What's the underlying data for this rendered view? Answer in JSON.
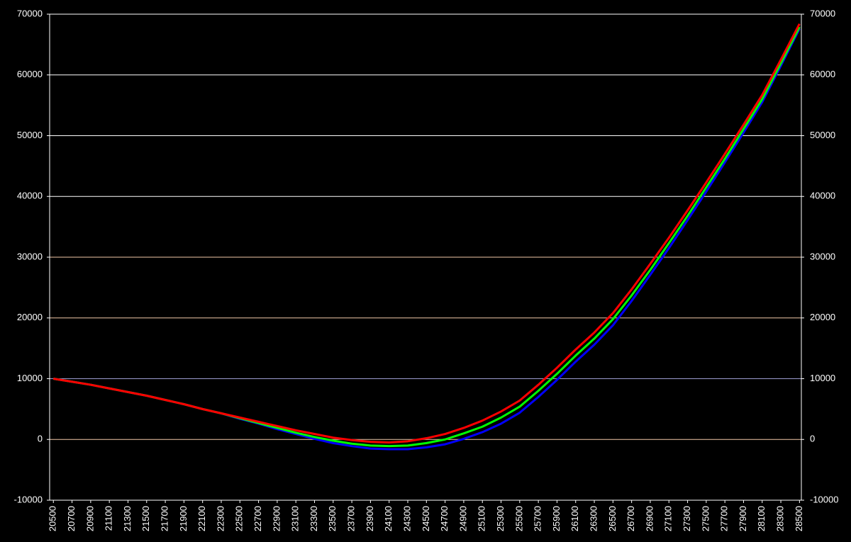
{
  "chart_data": {
    "type": "line",
    "x": [
      20500,
      20700,
      20900,
      21100,
      21300,
      21500,
      21700,
      21900,
      22100,
      22300,
      22500,
      22700,
      22900,
      23100,
      23300,
      23500,
      23700,
      23900,
      24100,
      24300,
      24500,
      24700,
      24900,
      25100,
      25300,
      25500,
      25700,
      25900,
      26100,
      26300,
      26500,
      26700,
      26900,
      27100,
      27300,
      27500,
      27700,
      27900,
      28100,
      28300,
      28500
    ],
    "xlim": [
      20460,
      28520
    ],
    "xticks": [
      20500,
      20700,
      20900,
      21100,
      21300,
      21500,
      21700,
      21900,
      22100,
      22300,
      22500,
      22700,
      22900,
      23100,
      23300,
      23500,
      23700,
      23900,
      24100,
      24300,
      24500,
      24700,
      24900,
      25100,
      25300,
      25500,
      25700,
      25900,
      26100,
      26300,
      26500,
      26700,
      26900,
      27100,
      27300,
      27500,
      27700,
      27900,
      28100,
      28300,
      28500
    ],
    "ylim": [
      -10000,
      70000
    ],
    "yticks": [
      -10000,
      0,
      10000,
      20000,
      30000,
      40000,
      50000,
      60000,
      70000
    ],
    "y2lim": [
      -10000,
      70000
    ],
    "y2ticks": [
      -10000,
      0,
      10000,
      20000,
      30000,
      40000,
      50000,
      60000,
      70000
    ],
    "grid": true,
    "grid_colors": [
      "#ffffff",
      "#f2c8a8",
      "#9c9cd0",
      "#f2c8a8",
      "#f2c8a8",
      "#ffffff",
      "#ffffff",
      "#ffffff",
      "#ffffff"
    ],
    "series": [
      {
        "color": "#0000ff",
        "values": [
          10000,
          9500,
          9000,
          8400,
          7800,
          7200,
          6500,
          5800,
          5000,
          4300,
          3400,
          2600,
          1700,
          900,
          100,
          -600,
          -1100,
          -1500,
          -1600,
          -1600,
          -1300,
          -800,
          100,
          1200,
          2600,
          4400,
          7000,
          9800,
          12800,
          15600,
          18800,
          22800,
          27100,
          31500,
          36100,
          40800,
          45600,
          50500,
          55500,
          61500,
          67600
        ]
      },
      {
        "color": "#00ff00",
        "values": [
          10000,
          9500,
          9000,
          8400,
          7800,
          7200,
          6500,
          5800,
          5000,
          4300,
          3500,
          2700,
          1900,
          1100,
          400,
          -200,
          -700,
          -1000,
          -1100,
          -1000,
          -600,
          0,
          1000,
          2100,
          3600,
          5400,
          8000,
          10800,
          13800,
          16600,
          19800,
          23700,
          27900,
          32300,
          36800,
          41500,
          46200,
          51100,
          56000,
          61900,
          67900
        ]
      },
      {
        "color": "#ff0000",
        "values": [
          10000,
          9500,
          9000,
          8400,
          7800,
          7200,
          6500,
          5800,
          5000,
          4300,
          3600,
          2900,
          2200,
          1500,
          900,
          300,
          -100,
          -400,
          -500,
          -300,
          200,
          900,
          1900,
          3100,
          4600,
          6400,
          9000,
          11800,
          14800,
          17600,
          20800,
          24700,
          28900,
          33200,
          37700,
          42300,
          47000,
          51800,
          56700,
          62500,
          68400
        ]
      }
    ]
  }
}
